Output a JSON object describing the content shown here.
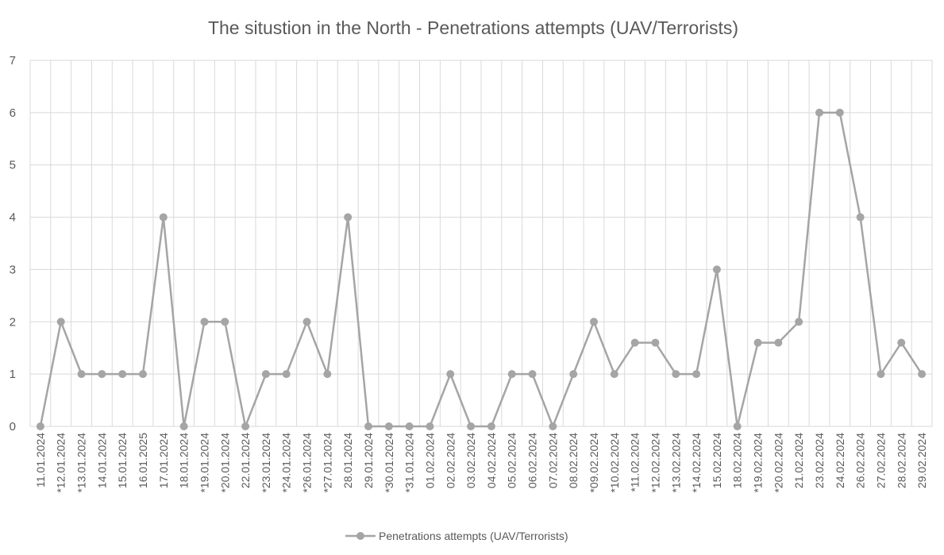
{
  "chart_data": {
    "type": "line",
    "title": "The situstion in the North - Penetrations attempts (UAV/Terrorists)",
    "xlabel": "",
    "ylabel": "",
    "ylim": [
      0,
      7
    ],
    "yticks": [
      0,
      1,
      2,
      3,
      4,
      5,
      6,
      7
    ],
    "grid": true,
    "legend_position": "bottom",
    "categories": [
      "11.01.2024",
      "*12.01.2024",
      "*13.01.2024",
      "14.01.2024",
      "15.01.2024",
      "16.01.2025",
      "17.01.2024",
      "18.01.2024",
      "*19.01.2024",
      "*20.01.2024",
      "22.01.2024",
      "*23.01.2024",
      "*24.01.2024",
      "*26.01.2024",
      "*27.01.2024",
      "28.01.2024",
      "29.01.2024",
      "*30.01.2024",
      "*31.01.2024",
      "01.02.2024",
      "02.02.2024",
      "03.02.2024",
      "04.02.2024",
      "05.02.2024",
      "06.02.2024",
      "07.02.2024",
      "08.02.2024",
      "*09.02.2024",
      "*10.02.2024",
      "*11.02.2024",
      "*12.02.2024",
      "*13.02.2024",
      "*14.02.2024",
      "15.02.2024",
      "18.02.2024",
      "*19.02.2024",
      "*20.02.2024",
      "21.02.2024",
      "23.02.2024",
      "24.02.2024",
      "26.02.2024",
      "27.02.2024",
      "28.02.2024",
      "29.02.2024"
    ],
    "series": [
      {
        "name": "Penetrations attempts (UAV/Terrorists)",
        "color": "#a5a5a5",
        "values": [
          0,
          2,
          1,
          1,
          1,
          1,
          4,
          0,
          2,
          2,
          0,
          1,
          1,
          2,
          1,
          4,
          0,
          0,
          0,
          0,
          1,
          0,
          0,
          1,
          1,
          0,
          1,
          2,
          1,
          1.6,
          1.6,
          1,
          1,
          3,
          0,
          1.6,
          1.6,
          2,
          6,
          6,
          4,
          1,
          1.6,
          1
        ]
      }
    ],
    "colors": {
      "gridline": "#d9d9d9",
      "text": "#595959",
      "series": "#a5a5a5"
    }
  }
}
